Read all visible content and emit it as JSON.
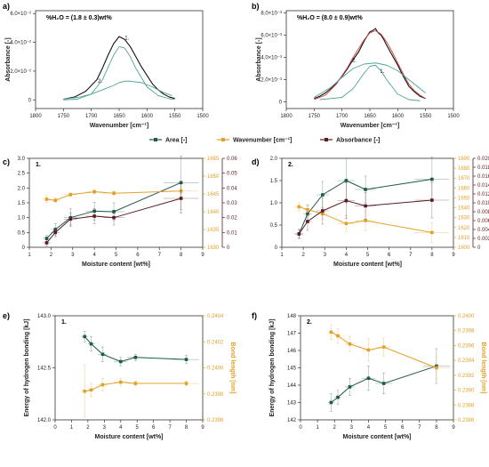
{
  "colors": {
    "area": "#1e5a4a",
    "wave": "#e3a12a",
    "absorb": "#5b1d24",
    "fit": "#4fa397",
    "data": "#111111",
    "cum": "#d24040",
    "axis": "#333333"
  },
  "legend": {
    "items": [
      "Area [-]",
      "Wavenumber [cm⁻¹]",
      "Absorbance [-]"
    ]
  },
  "chart_data": [
    {
      "id": "a",
      "type": "line",
      "panel_label": "a)",
      "annotation": "%H₂O = (1.8 ± 0.3)wt%",
      "xlabel": "Wavenumber [cm⁻¹]",
      "ylabel": "Absorbance [-]",
      "xlim": [
        1800,
        1500
      ],
      "ylim": [
        -0.006,
        0.062
      ],
      "xticks": [
        1800,
        1750,
        1700,
        1650,
        1600,
        1550,
        1500
      ],
      "yticks": [
        0,
        0.02,
        0.04,
        0.06
      ],
      "ytick_labels": [
        "0",
        "2.0×10⁻²",
        "4.0×10⁻²",
        "6.0×10⁻²"
      ],
      "peak_labels": [
        {
          "text": "1.",
          "x": 1640,
          "y": 0.042
        },
        {
          "text": "2.",
          "x": 1688,
          "y": 0.012
        }
      ],
      "series": [
        {
          "x": [
            1750,
            1730,
            1710,
            1690,
            1680,
            1670,
            1660,
            1650,
            1640,
            1630,
            1620,
            1610,
            1600,
            1590,
            1580,
            1570,
            1560,
            1550
          ],
          "y": [
            0.0005,
            0.002,
            0.006,
            0.014,
            0.022,
            0.031,
            0.039,
            0.044,
            0.042,
            0.037,
            0.03,
            0.023,
            0.017,
            0.011,
            0.007,
            0.004,
            0.002,
            0.001
          ]
        },
        {
          "x": [
            1750,
            1725,
            1700,
            1680,
            1660,
            1650,
            1640,
            1630,
            1620,
            1600,
            1580,
            1560,
            1550
          ],
          "y": [
            0,
            0.0005,
            0.004,
            0.014,
            0.031,
            0.037,
            0.036,
            0.03,
            0.022,
            0.009,
            0.003,
            0.0008,
            0.0003
          ]
        },
        {
          "x": [
            1750,
            1720,
            1700,
            1680,
            1660,
            1650,
            1640,
            1630,
            1610,
            1590,
            1570,
            1555
          ],
          "y": [
            0.0005,
            0.002,
            0.004,
            0.007,
            0.01,
            0.012,
            0.013,
            0.013,
            0.012,
            0.009,
            0.005,
            0.003
          ]
        }
      ]
    },
    {
      "id": "b",
      "type": "line",
      "panel_label": "b)",
      "annotation": "%H₂O = (8.0 ± 0.9)wt%",
      "xlabel": "Wavenumber [cm⁻¹]",
      "ylabel": "Absorbance [-]",
      "xlim": [
        1800,
        1500
      ],
      "ylim": [
        -0.0006,
        0.0082
      ],
      "xticks": [
        1800,
        1750,
        1700,
        1650,
        1600,
        1550,
        1500
      ],
      "yticks": [
        0,
        0.002,
        0.004,
        0.006,
        0.008
      ],
      "ytick_labels": [
        "0",
        "2.0×10⁻³",
        "4.0×10⁻³",
        "6.0×10⁻³",
        "8.0×10⁻³"
      ],
      "peak_labels": [
        {
          "text": "2.",
          "x": 1682,
          "y": 0.0036
        },
        {
          "text": "1.",
          "x": 1632,
          "y": 0.0026
        }
      ],
      "series": [
        {
          "x": [
            1750,
            1740,
            1730,
            1720,
            1710,
            1700,
            1690,
            1680,
            1670,
            1660,
            1650,
            1645,
            1640,
            1635,
            1630,
            1625,
            1620,
            1610,
            1600,
            1590,
            1580,
            1570,
            1560,
            1550
          ],
          "y": [
            0.0003,
            0.0005,
            0.0008,
            0.0012,
            0.0017,
            0.0023,
            0.003,
            0.0038,
            0.0045,
            0.0055,
            0.0063,
            0.0064,
            0.0066,
            0.0062,
            0.006,
            0.0056,
            0.0051,
            0.0042,
            0.0033,
            0.0023,
            0.0014,
            0.0009,
            0.0005,
            0.0003
          ]
        },
        {
          "x": [
            1750,
            1730,
            1710,
            1690,
            1680,
            1670,
            1660,
            1650,
            1640,
            1630,
            1620,
            1610,
            1600,
            1590,
            1580,
            1570,
            1560,
            1550
          ],
          "y": [
            0.0002,
            0.0006,
            0.0016,
            0.0031,
            0.004,
            0.0048,
            0.0056,
            0.0062,
            0.0064,
            0.0061,
            0.0054,
            0.0045,
            0.0035,
            0.0025,
            0.0016,
            0.001,
            0.0006,
            0.0003
          ]
        },
        {
          "x": [
            1740,
            1700,
            1680,
            1660,
            1650,
            1640,
            1630,
            1620,
            1600,
            1580,
            1560
          ],
          "y": [
            0.0002,
            0.0004,
            0.0012,
            0.0026,
            0.0032,
            0.0033,
            0.0028,
            0.002,
            0.0007,
            0.0002,
            0.0001
          ]
        },
        {
          "x": [
            1750,
            1720,
            1700,
            1680,
            1660,
            1640,
            1620,
            1600,
            1580,
            1560,
            1550
          ],
          "y": [
            0.0004,
            0.0013,
            0.0022,
            0.003,
            0.0034,
            0.0035,
            0.0033,
            0.0028,
            0.002,
            0.0012,
            0.0008
          ]
        }
      ]
    },
    {
      "id": "c",
      "type": "line",
      "panel_label": "c)",
      "inner_label": "1.",
      "xlabel": "Moisture content [wt%]",
      "xlim": [
        1,
        9
      ],
      "xticks": [
        1,
        2,
        3,
        4,
        5,
        6,
        7,
        8,
        9
      ],
      "y1lim": [
        0,
        3
      ],
      "y1ticks": [
        0,
        0.5,
        1.0,
        1.5,
        2.0,
        2.5,
        3.0
      ],
      "y1tick_labels": [
        "0",
        "0.5",
        "1.0",
        "1.5",
        "2.0",
        "2.5",
        "3.0"
      ],
      "y2lim": [
        1630,
        1655
      ],
      "y2ticks": [
        1630,
        1635,
        1640,
        1645,
        1650,
        1655
      ],
      "y3lim": [
        0,
        0.06
      ],
      "y3ticks": [
        0,
        0.01,
        0.02,
        0.03,
        0.04,
        0.05,
        0.06
      ],
      "y3tick_labels": [
        "0",
        "0.01",
        "0.02",
        "0.03",
        "0.04",
        "0.05",
        "0.06"
      ],
      "series": [
        {
          "name": "Area [-]",
          "axis": "y1",
          "x": [
            1.8,
            2.2,
            2.9,
            4.0,
            4.9,
            8.0
          ],
          "y": [
            0.3,
            0.6,
            1.0,
            1.22,
            1.2,
            2.18
          ],
          "yerr": [
            0.1,
            0.2,
            0.3,
            0.3,
            0.3,
            0.9
          ],
          "xerr": [
            0.2,
            0.2,
            0.3,
            0.4,
            0.5,
            0.8
          ]
        },
        {
          "name": "Wavenumber [cm⁻¹]",
          "axis": "y2",
          "x": [
            1.8,
            2.2,
            2.9,
            4.0,
            4.9,
            8.0
          ],
          "y": [
            1643.5,
            1643.2,
            1644.8,
            1645.6,
            1645.2,
            1645.8
          ],
          "yerr": [
            1.0,
            0.6,
            0.5,
            0.6,
            0.5,
            0.8
          ],
          "xerr": [
            0.2,
            0.2,
            0.3,
            0.4,
            0.5,
            0.8
          ]
        },
        {
          "name": "Absorbance [-]",
          "axis": "y3",
          "x": [
            1.8,
            2.2,
            2.9,
            4.0,
            4.9,
            8.0
          ],
          "y": [
            0.003,
            0.01,
            0.019,
            0.021,
            0.02,
            0.033
          ],
          "yerr": [
            0.002,
            0.003,
            0.004,
            0.005,
            0.005,
            0.01
          ],
          "xerr": [
            0.2,
            0.2,
            0.3,
            0.4,
            0.5,
            0.8
          ]
        }
      ]
    },
    {
      "id": "d",
      "type": "line",
      "panel_label": "d)",
      "inner_label": "2.",
      "xlabel": "Moisture content [wt%]",
      "xlim": [
        1,
        9
      ],
      "xticks": [
        1,
        2,
        3,
        4,
        5,
        6,
        7,
        8,
        9
      ],
      "y1lim": [
        0,
        2
      ],
      "y1ticks": [
        0,
        0.5,
        1.0,
        1.5,
        2.0
      ],
      "y1tick_labels": [
        "0",
        "0.5",
        "1.0",
        "1.5",
        "2.0"
      ],
      "y2lim": [
        1600,
        1690
      ],
      "y2ticks": [
        1600,
        1610,
        1620,
        1630,
        1640,
        1650,
        1660,
        1670,
        1680,
        1690
      ],
      "y3lim": [
        0,
        0.02
      ],
      "y3ticks": [
        0,
        0.002,
        0.004,
        0.006,
        0.008,
        0.01,
        0.012,
        0.014,
        0.016,
        0.018,
        0.02
      ],
      "y3tick_labels": [
        "0",
        "0.002",
        "0.004",
        "0.006",
        "0.008",
        "0.010",
        "0.012",
        "0.014",
        "0.016",
        "0.018",
        "0.020"
      ],
      "series": [
        {
          "name": "Area [-]",
          "axis": "y1",
          "x": [
            1.8,
            2.2,
            2.9,
            4.0,
            4.9,
            8.0
          ],
          "y": [
            0.3,
            0.75,
            1.18,
            1.5,
            1.3,
            1.53
          ],
          "yerr": [
            0.1,
            0.2,
            0.3,
            0.5,
            0.3,
            0.5
          ],
          "xerr": [
            0.2,
            0.2,
            0.3,
            0.4,
            0.5,
            0.8
          ]
        },
        {
          "name": "Wavenumber [cm⁻¹]",
          "axis": "y2",
          "x": [
            1.8,
            2.2,
            2.9,
            4.0,
            4.9,
            8.0
          ],
          "y": [
            1641,
            1638,
            1634,
            1624,
            1627,
            1615
          ],
          "yerr": [
            4,
            5,
            6,
            8,
            10,
            10
          ],
          "xerr": [
            0.2,
            0.2,
            0.3,
            0.4,
            0.5,
            0.8
          ]
        },
        {
          "name": "Absorbance [-]",
          "axis": "y3",
          "x": [
            1.8,
            2.2,
            2.9,
            4.0,
            4.9,
            8.0
          ],
          "y": [
            0.003,
            0.0058,
            0.0082,
            0.0105,
            0.0093,
            0.0106
          ],
          "yerr": [
            0.001,
            0.002,
            0.003,
            0.004,
            0.003,
            0.004
          ],
          "xerr": [
            0.2,
            0.2,
            0.3,
            0.4,
            0.5,
            0.8
          ]
        }
      ]
    },
    {
      "id": "e",
      "type": "line",
      "panel_label": "e)",
      "inner_label": "1.",
      "xlabel": "Moisture content [wt%]",
      "ylabel": "Energy of hydrogen bonding [kJ]",
      "y2label": "Bond length [nm]",
      "xlim": [
        0,
        9
      ],
      "xticks": [
        0,
        1,
        2,
        3,
        4,
        5,
        6,
        7,
        8,
        9
      ],
      "y1lim": [
        142.0,
        143.0
      ],
      "y1ticks": [
        142.0,
        142.5,
        143.0
      ],
      "y1tick_labels": [
        "142.0",
        "142.5",
        "143.0"
      ],
      "y2lim": [
        0.2396,
        0.2404
      ],
      "y2ticks": [
        0.2396,
        0.2398,
        0.24,
        0.2402,
        0.2404
      ],
      "y2tick_labels": [
        "0.2396",
        "0.2398",
        "0.2400",
        "0.2402",
        "0.2404"
      ],
      "series": [
        {
          "name": "Energy of hydrogen bonding",
          "axis": "y1",
          "x": [
            1.8,
            2.2,
            2.9,
            4.0,
            4.9,
            8.0
          ],
          "y": [
            142.8,
            142.73,
            142.63,
            142.56,
            142.6,
            142.58
          ],
          "yerr": [
            0.05,
            0.07,
            0.07,
            0.04,
            0.03,
            0.04
          ],
          "xerr": [
            0.2,
            0.2,
            0.3,
            0.4,
            0.5,
            0.8
          ]
        },
        {
          "name": "Bond length",
          "axis": "y2",
          "x": [
            1.8,
            2.2,
            2.9,
            4.0,
            4.9,
            8.0
          ],
          "y": [
            0.23982,
            0.23983,
            0.23987,
            0.23989,
            0.23988,
            0.23988
          ],
          "yerr": [
            0.0002,
            5e-05,
            5e-05,
            3e-05,
            2e-05,
            2e-05
          ],
          "xerr": [
            0.2,
            0.2,
            0.3,
            0.4,
            0.5,
            0.8
          ]
        }
      ]
    },
    {
      "id": "f",
      "type": "line",
      "panel_label": "f)",
      "inner_label": "2.",
      "xlabel": "Moisture content [wt%]",
      "ylabel": "Energy of hydrogen bonding [kJ]",
      "y2label": "Bond length [nm]",
      "xlim": [
        0,
        9
      ],
      "xticks": [
        0,
        1,
        2,
        3,
        4,
        5,
        6,
        7,
        8,
        9
      ],
      "y1lim": [
        142,
        148
      ],
      "y1ticks": [
        142,
        143,
        144,
        145,
        146,
        147,
        148
      ],
      "y1tick_labels": [
        "142",
        "143",
        "144",
        "145",
        "146",
        "147",
        "148"
      ],
      "y2lim": [
        0.2386,
        0.24
      ],
      "y2ticks": [
        0.2386,
        0.2388,
        0.239,
        0.2392,
        0.2394,
        0.2396,
        0.2398,
        0.24
      ],
      "y2tick_labels": [
        "0.2386",
        "0.2388",
        "0.2390",
        "0.2392",
        "0.2394",
        "0.2396",
        "0.2398",
        "0.2400"
      ],
      "series": [
        {
          "name": "Energy of hydrogen bonding",
          "axis": "y1",
          "x": [
            1.8,
            2.2,
            2.9,
            4.0,
            4.9,
            8.0
          ],
          "y": [
            143.0,
            143.3,
            143.9,
            144.4,
            144.1,
            145.1
          ],
          "yerr": [
            0.5,
            0.4,
            0.5,
            0.7,
            0.6,
            1.0
          ],
          "xerr": [
            0.2,
            0.2,
            0.3,
            0.4,
            0.5,
            0.8
          ]
        },
        {
          "name": "Bond length",
          "axis": "y2",
          "x": [
            1.8,
            2.2,
            2.9,
            4.0,
            4.9,
            8.0
          ],
          "y": [
            0.23978,
            0.23973,
            0.23962,
            0.23954,
            0.23958,
            0.2393
          ],
          "yerr": [
            0.0001,
            0.0001,
            0.0001,
            0.00015,
            0.00012,
            0.00015
          ],
          "xerr": [
            0.2,
            0.2,
            0.3,
            0.4,
            0.5,
            0.8
          ]
        }
      ]
    }
  ]
}
